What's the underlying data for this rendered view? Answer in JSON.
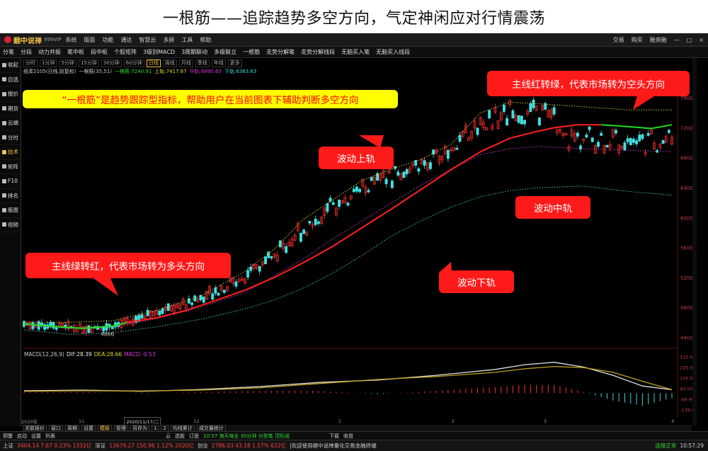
{
  "banner": {
    "title": "一根筋——追踪趋势多空方向，气定神闲应对行情震荡"
  },
  "titlebar": {
    "app_name": "翻中说禅",
    "app_tag": "999VIP",
    "menus": [
      "系统",
      "版面",
      "功能",
      "通达",
      "智慧云",
      "多屏",
      "工具",
      "帮助"
    ],
    "right_items": [
      "交易",
      "购买",
      "融资融",
      "—",
      "□",
      "×"
    ]
  },
  "toolbar": {
    "items": [
      "分笔",
      "分段",
      "动力共振",
      "笔中枢",
      "段中枢",
      "个股矩阵",
      "3级别MACD",
      "3周期联动",
      "多级联立",
      "一根筋",
      "走势分解笔",
      "走势分解线段",
      "无脑买入笔",
      "无脑买入线段"
    ]
  },
  "sidebar": {
    "items": [
      {
        "label": "收起",
        "active": false
      },
      {
        "label": "自选",
        "active": false
      },
      {
        "label": "报价",
        "active": false
      },
      {
        "label": "期货",
        "active": false
      },
      {
        "label": "云端",
        "active": false
      },
      {
        "label": "分时",
        "active": false
      },
      {
        "label": "技术",
        "active": true
      },
      {
        "label": "矩阵",
        "active": false
      },
      {
        "label": "F10",
        "active": false
      },
      {
        "label": "排名",
        "active": false
      },
      {
        "label": "版面",
        "active": false
      },
      {
        "label": "视频",
        "active": false
      }
    ]
  },
  "periods": [
    {
      "label": "分时",
      "active": false
    },
    {
      "label": "1分钟",
      "active": false
    },
    {
      "label": "5分钟",
      "active": false
    },
    {
      "label": "15分钟",
      "active": false
    },
    {
      "label": "30分钟",
      "active": false
    },
    {
      "label": "60分钟",
      "active": false
    },
    {
      "label": "日线",
      "active": true
    },
    {
      "label": "周线",
      "active": false
    },
    {
      "label": "月线",
      "active": false
    },
    {
      "label": "季线",
      "active": false
    },
    {
      "label": "年线",
      "active": false
    },
    {
      "label": "更多",
      "active": false
    }
  ],
  "legend": {
    "symbol": "纸浆2105(日线,前复权)",
    "indicator": "一根筋(35,51)",
    "main_label": "一根筋:7240.91",
    "upper_label": "上轨:7417.67",
    "mid_label": "中轨:6890.65",
    "lower_label": "下轨:6363.63",
    "colors": {
      "symbol": "#cccccc",
      "main": "#33dd33",
      "upper": "#dddd33",
      "mid": "#dd33dd",
      "lower": "#33dddd"
    }
  },
  "macd_legend": {
    "title": "MACD(12,26,9)",
    "dif": "DIF:28.39",
    "dea": "DEA:28.66",
    "macd": "MACD:-0.53"
  },
  "annotations": {
    "intro": "“一根筋”是趋势跟踪型指标，帮助用户在当前图表下辅助判断多空方向",
    "upper_band": "波动上轨",
    "mid_band": "波动中轨",
    "lower_band": "波动下轨",
    "turn_red": "主线绿转红，代表市场转为多头方向",
    "turn_green": "主线红转绿，代表市场转为空头方向"
  },
  "chart_data": {
    "type": "line",
    "price_axis_ticks": [
      7600,
      7200,
      6800,
      6400,
      6000,
      5600,
      5200,
      4800,
      4400
    ],
    "macd_axis_ticks": [
      310.0,
      220.0,
      130.0,
      40.0,
      -49.99,
      -139.99
    ],
    "low_marker": 4666,
    "date_labels": [
      "2020年",
      "11",
      "2020/11/17/二",
      "12",
      "1",
      "2",
      "3",
      "4"
    ],
    "main_line": [
      [
        0,
        4580
      ],
      [
        10,
        4545
      ],
      [
        20,
        4520
      ],
      [
        30,
        4550
      ],
      [
        35,
        4600
      ],
      [
        45,
        4660
      ],
      [
        55,
        4760
      ],
      [
        65,
        4890
      ],
      [
        75,
        5030
      ],
      [
        85,
        5200
      ],
      [
        95,
        5400
      ],
      [
        105,
        5620
      ],
      [
        115,
        5870
      ],
      [
        125,
        6120
      ],
      [
        135,
        6380
      ],
      [
        145,
        6640
      ],
      [
        155,
        6880
      ],
      [
        165,
        7060
      ],
      [
        173,
        7140
      ],
      [
        180,
        7200
      ],
      [
        188,
        7240
      ],
      [
        196,
        7240
      ],
      [
        205,
        7215
      ],
      [
        213,
        7190
      ],
      [
        220,
        7240
      ]
    ],
    "upper_band": [
      [
        0,
        4600
      ],
      [
        15,
        4600
      ],
      [
        30,
        4620
      ],
      [
        45,
        4760
      ],
      [
        60,
        4950
      ],
      [
        75,
        5280
      ],
      [
        85,
        5580
      ],
      [
        95,
        5980
      ],
      [
        105,
        6240
      ],
      [
        115,
        6500
      ],
      [
        125,
        6650
      ],
      [
        135,
        6780
      ],
      [
        145,
        6980
      ],
      [
        155,
        7400
      ],
      [
        165,
        7540
      ],
      [
        175,
        7520
      ],
      [
        190,
        7480
      ],
      [
        205,
        7440
      ],
      [
        220,
        7440
      ]
    ],
    "mid_band": [
      [
        0,
        4560
      ],
      [
        15,
        4520
      ],
      [
        30,
        4540
      ],
      [
        45,
        4650
      ],
      [
        60,
        4800
      ],
      [
        75,
        5000
      ],
      [
        85,
        5220
      ],
      [
        95,
        5450
      ],
      [
        105,
        5720
      ],
      [
        115,
        5960
      ],
      [
        125,
        6200
      ],
      [
        135,
        6440
      ],
      [
        145,
        6640
      ],
      [
        155,
        6840
      ],
      [
        165,
        6920
      ],
      [
        175,
        6950
      ],
      [
        190,
        6920
      ],
      [
        205,
        6900
      ],
      [
        220,
        6880
      ]
    ],
    "lower_band": [
      [
        0,
        4500
      ],
      [
        15,
        4440
      ],
      [
        30,
        4460
      ],
      [
        45,
        4540
      ],
      [
        60,
        4640
      ],
      [
        75,
        4780
      ],
      [
        85,
        4900
      ],
      [
        95,
        5060
      ],
      [
        105,
        5260
      ],
      [
        115,
        5500
      ],
      [
        125,
        5760
      ],
      [
        135,
        5960
      ],
      [
        145,
        6140
      ],
      [
        155,
        6280
      ],
      [
        165,
        6360
      ],
      [
        175,
        6400
      ],
      [
        190,
        6420
      ],
      [
        205,
        6350
      ],
      [
        220,
        6300
      ]
    ],
    "dif_line": [
      [
        0,
        20
      ],
      [
        20,
        25
      ],
      [
        40,
        15
      ],
      [
        60,
        30
      ],
      [
        80,
        55
      ],
      [
        100,
        90
      ],
      [
        120,
        110
      ],
      [
        140,
        150
      ],
      [
        160,
        200
      ],
      [
        170,
        240
      ],
      [
        180,
        260
      ],
      [
        190,
        220
      ],
      [
        200,
        150
      ],
      [
        210,
        60
      ],
      [
        220,
        28
      ]
    ],
    "dea_line": [
      [
        0,
        15
      ],
      [
        20,
        20
      ],
      [
        40,
        18
      ],
      [
        60,
        25
      ],
      [
        80,
        45
      ],
      [
        100,
        80
      ],
      [
        120,
        115
      ],
      [
        140,
        140
      ],
      [
        160,
        175
      ],
      [
        170,
        205
      ],
      [
        180,
        225
      ],
      [
        190,
        215
      ],
      [
        200,
        175
      ],
      [
        210,
        100
      ],
      [
        220,
        29
      ]
    ],
    "macd_hist_range": {
      "x_start": 0,
      "x_end": 220
    }
  }
}
